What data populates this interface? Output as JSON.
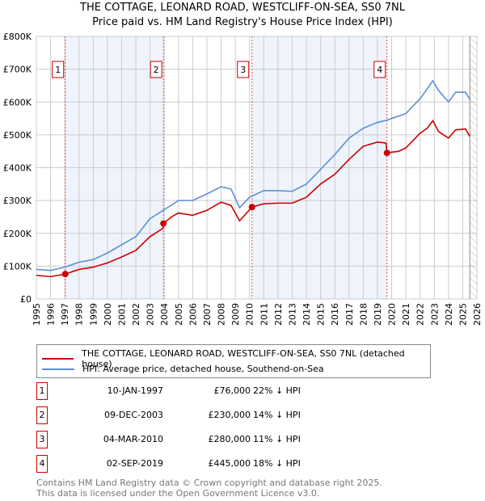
{
  "chart_data": {
    "type": "line",
    "title": "THE COTTAGE, LEONARD ROAD, WESTCLIFF-ON-SEA, SS0 7NL",
    "subtitle": "Price paid vs. HM Land Registry's House Price Index (HPI)",
    "xlim": [
      1995,
      2026
    ],
    "ylim": [
      0,
      800000
    ],
    "x_ticks": [
      "1995",
      "1996",
      "1997",
      "1998",
      "1999",
      "2000",
      "2001",
      "2002",
      "2003",
      "2004",
      "2005",
      "2006",
      "2007",
      "2008",
      "2009",
      "2010",
      "2011",
      "2012",
      "2013",
      "2014",
      "2015",
      "2016",
      "2017",
      "2018",
      "2019",
      "2020",
      "2021",
      "2022",
      "2023",
      "2024",
      "2025",
      "2026"
    ],
    "y_ticks": [
      {
        "v": 0,
        "label": "£0"
      },
      {
        "v": 100000,
        "label": "£100K"
      },
      {
        "v": 200000,
        "label": "£200K"
      },
      {
        "v": 300000,
        "label": "£300K"
      },
      {
        "v": 400000,
        "label": "£400K"
      },
      {
        "v": 500000,
        "label": "£500K"
      },
      {
        "v": 600000,
        "label": "£600K"
      },
      {
        "v": 700000,
        "label": "£700K"
      },
      {
        "v": 800000,
        "label": "£800K"
      }
    ],
    "grid": true,
    "series": [
      {
        "name": "THE COTTAGE, LEONARD ROAD, WESTCLIFF-ON-SEA, SS0 7NL (detached house)",
        "color": "#cc0000",
        "x": [
          1995,
          1996,
          1997.03,
          1998,
          1999,
          2000,
          2001,
          2002,
          2003,
          2003.9,
          2003.94,
          2004.5,
          2005,
          2006,
          2007,
          2008,
          2008.7,
          2009.3,
          2010.17,
          2011,
          2012,
          2013,
          2014,
          2015,
          2016,
          2017,
          2018,
          2019,
          2019.6,
          2019.67,
          2020.5,
          2021,
          2022,
          2022.5,
          2022.9,
          2023.3,
          2024,
          2024.5,
          2025.2,
          2025.5
        ],
        "y": [
          72000,
          68000,
          76000,
          90000,
          97000,
          110000,
          128000,
          148000,
          190000,
          215000,
          230000,
          250000,
          262000,
          255000,
          270000,
          295000,
          285000,
          238000,
          280000,
          290000,
          292000,
          292000,
          310000,
          350000,
          380000,
          425000,
          465000,
          478000,
          475000,
          445000,
          450000,
          460000,
          505000,
          520000,
          543000,
          510000,
          490000,
          515000,
          518000,
          495000
        ]
      },
      {
        "name": "HPI: Average price, detached house, Southend-on-Sea",
        "color": "#5b8fd4",
        "x": [
          1995,
          1996,
          1997,
          1998,
          1999,
          2000,
          2001,
          2002,
          2003,
          2004,
          2005,
          2006,
          2007,
          2008,
          2008.7,
          2009.3,
          2010,
          2011,
          2012,
          2013,
          2014,
          2015,
          2016,
          2017,
          2018,
          2019,
          2019.7,
          2020,
          2021,
          2022,
          2022.5,
          2022.9,
          2023.3,
          2024,
          2024.5,
          2025.2,
          2025.5
        ],
        "y": [
          90000,
          87000,
          97000,
          112000,
          120000,
          140000,
          165000,
          190000,
          245000,
          272000,
          300000,
          300000,
          320000,
          342000,
          335000,
          278000,
          310000,
          330000,
          330000,
          328000,
          350000,
          395000,
          440000,
          490000,
          520000,
          538000,
          545000,
          550000,
          565000,
          610000,
          640000,
          665000,
          635000,
          600000,
          630000,
          630000,
          608000
        ]
      }
    ],
    "sales": [
      {
        "n": "1",
        "x": 1997.03,
        "y": 76000,
        "date": "10-JAN-1997",
        "price": "£76,000",
        "hpi": "22% ↓ HPI"
      },
      {
        "n": "2",
        "x": 2003.94,
        "y": 230000,
        "date": "09-DEC-2003",
        "price": "£230,000",
        "hpi": "14% ↓ HPI"
      },
      {
        "n": "3",
        "x": 2010.17,
        "y": 280000,
        "date": "04-MAR-2010",
        "price": "£280,000",
        "hpi": "11% ↓ HPI"
      },
      {
        "n": "4",
        "x": 2019.67,
        "y": 445000,
        "date": "02-SEP-2019",
        "price": "£445,000",
        "hpi": "18% ↓ HPI"
      }
    ],
    "shaded_ranges": [
      [
        1997.03,
        2003.94
      ],
      [
        2010.17,
        2019.67
      ]
    ],
    "hatched_from": 2025.5,
    "legend": "below"
  },
  "footer": [
    "Contains HM Land Registry data © Crown copyright and database right 2025.",
    "This data is licensed under the Open Government Licence v3.0."
  ]
}
